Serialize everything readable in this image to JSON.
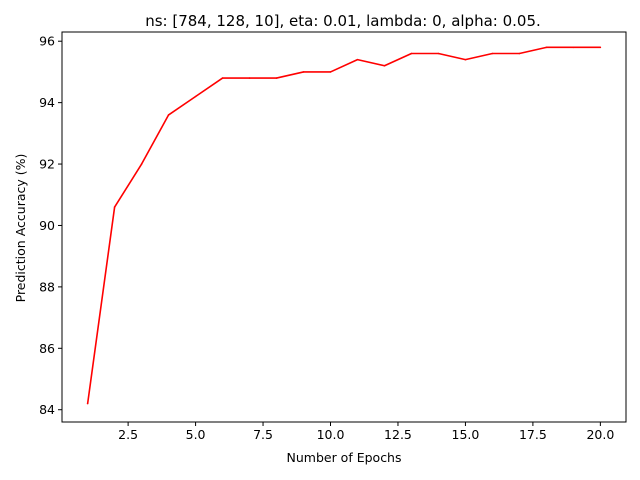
{
  "chart_data": {
    "type": "line",
    "title": "ns: [784, 128, 10], eta: 0.01, lambda: 0, alpha: 0.05.",
    "xlabel": "Number of Epochs",
    "ylabel": "Prediction Accuracy (%)",
    "xlim": [
      0.05,
      20.95
    ],
    "ylim": [
      83.6,
      96.3
    ],
    "xticks": [
      2.5,
      5.0,
      7.5,
      10.0,
      12.5,
      15.0,
      17.5,
      20.0
    ],
    "xtick_labels": [
      "2.5",
      "5.0",
      "7.5",
      "10.0",
      "12.5",
      "15.0",
      "17.5",
      "20.0"
    ],
    "yticks": [
      84,
      86,
      88,
      90,
      92,
      94,
      96
    ],
    "ytick_labels": [
      "84",
      "86",
      "88",
      "90",
      "92",
      "94",
      "96"
    ],
    "grid": false,
    "series": [
      {
        "name": "accuracy",
        "color": "#ff0000",
        "x": [
          1,
          2,
          3,
          4,
          5,
          6,
          7,
          8,
          9,
          10,
          11,
          12,
          13,
          14,
          15,
          16,
          17,
          18,
          19,
          20
        ],
        "values": [
          84.2,
          90.6,
          92.0,
          93.6,
          94.2,
          94.8,
          94.8,
          94.8,
          95.0,
          95.0,
          95.4,
          95.2,
          95.6,
          95.6,
          95.4,
          95.6,
          95.6,
          95.8,
          95.8,
          95.8
        ]
      }
    ]
  }
}
